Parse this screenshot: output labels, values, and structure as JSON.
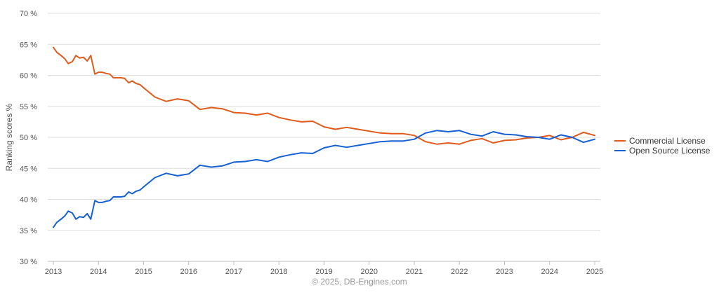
{
  "chart_data": {
    "type": "line",
    "ylabel": "Ranking scores %",
    "ylim": [
      30,
      70
    ],
    "y_ticks": [
      "30 %",
      "35 %",
      "40 %",
      "45 %",
      "50 %",
      "55 %",
      "60 %",
      "65 %",
      "70 %"
    ],
    "y_tick_values": [
      30,
      35,
      40,
      45,
      50,
      55,
      60,
      65,
      70
    ],
    "xlim": [
      2013,
      2025
    ],
    "x_ticks": [
      "2013",
      "2014",
      "2015",
      "2016",
      "2017",
      "2018",
      "2019",
      "2020",
      "2021",
      "2022",
      "2023",
      "2024",
      "2025"
    ],
    "x_tick_values": [
      2013,
      2014,
      2015,
      2016,
      2017,
      2018,
      2019,
      2020,
      2021,
      2022,
      2023,
      2024,
      2025
    ],
    "grid": true,
    "legend_position": "right",
    "series": [
      {
        "name": "Commercial License",
        "color": "#e05a1c",
        "x": [
          2013.0,
          2013.08,
          2013.17,
          2013.25,
          2013.33,
          2013.42,
          2013.5,
          2013.58,
          2013.67,
          2013.75,
          2013.83,
          2013.92,
          2014.0,
          2014.08,
          2014.17,
          2014.25,
          2014.33,
          2014.42,
          2014.5,
          2014.58,
          2014.67,
          2014.75,
          2014.83,
          2014.92,
          2015.0,
          2015.25,
          2015.5,
          2015.75,
          2016.0,
          2016.25,
          2016.5,
          2016.75,
          2017.0,
          2017.25,
          2017.5,
          2017.75,
          2018.0,
          2018.25,
          2018.5,
          2018.75,
          2019.0,
          2019.25,
          2019.5,
          2019.75,
          2020.0,
          2020.25,
          2020.5,
          2020.75,
          2021.0,
          2021.25,
          2021.5,
          2021.75,
          2022.0,
          2022.25,
          2022.5,
          2022.75,
          2023.0,
          2023.25,
          2023.5,
          2023.75,
          2024.0,
          2024.25,
          2024.5,
          2024.75,
          2025.0
        ],
        "values": [
          64.5,
          63.7,
          63.2,
          62.7,
          61.9,
          62.2,
          63.2,
          62.8,
          62.9,
          62.3,
          63.2,
          60.2,
          60.5,
          60.5,
          60.3,
          60.2,
          59.6,
          59.6,
          59.6,
          59.5,
          58.8,
          59.1,
          58.7,
          58.5,
          58.0,
          56.5,
          55.8,
          56.2,
          55.9,
          54.5,
          54.8,
          54.6,
          54.0,
          53.9,
          53.6,
          53.9,
          53.2,
          52.8,
          52.5,
          52.6,
          51.7,
          51.3,
          51.6,
          51.3,
          51.0,
          50.7,
          50.6,
          50.6,
          50.3,
          49.3,
          48.9,
          49.1,
          48.9,
          49.5,
          49.8,
          49.1,
          49.5,
          49.6,
          49.9,
          50.0,
          50.3,
          49.6,
          50.0,
          50.8,
          50.3
        ]
      },
      {
        "name": "Open Source License",
        "color": "#1560d4",
        "x": [
          2013.0,
          2013.08,
          2013.17,
          2013.25,
          2013.33,
          2013.42,
          2013.5,
          2013.58,
          2013.67,
          2013.75,
          2013.83,
          2013.92,
          2014.0,
          2014.08,
          2014.17,
          2014.25,
          2014.33,
          2014.42,
          2014.5,
          2014.58,
          2014.67,
          2014.75,
          2014.83,
          2014.92,
          2015.0,
          2015.25,
          2015.5,
          2015.75,
          2016.0,
          2016.25,
          2016.5,
          2016.75,
          2017.0,
          2017.25,
          2017.5,
          2017.75,
          2018.0,
          2018.25,
          2018.5,
          2018.75,
          2019.0,
          2019.25,
          2019.5,
          2019.75,
          2020.0,
          2020.25,
          2020.5,
          2020.75,
          2021.0,
          2021.25,
          2021.5,
          2021.75,
          2022.0,
          2022.25,
          2022.5,
          2022.75,
          2023.0,
          2023.25,
          2023.5,
          2023.75,
          2024.0,
          2024.25,
          2024.5,
          2024.75,
          2025.0
        ],
        "values": [
          35.5,
          36.3,
          36.8,
          37.3,
          38.1,
          37.8,
          36.8,
          37.2,
          37.1,
          37.7,
          36.8,
          39.8,
          39.5,
          39.5,
          39.7,
          39.8,
          40.4,
          40.4,
          40.4,
          40.5,
          41.2,
          40.9,
          41.3,
          41.5,
          42.0,
          43.5,
          44.2,
          43.8,
          44.1,
          45.5,
          45.2,
          45.4,
          46.0,
          46.1,
          46.4,
          46.1,
          46.8,
          47.2,
          47.5,
          47.4,
          48.3,
          48.7,
          48.4,
          48.7,
          49.0,
          49.3,
          49.4,
          49.4,
          49.7,
          50.7,
          51.1,
          50.9,
          51.1,
          50.5,
          50.2,
          50.9,
          50.5,
          50.4,
          50.1,
          50.0,
          49.7,
          50.4,
          50.0,
          49.2,
          49.7
        ]
      }
    ]
  },
  "credit": "© 2025, DB-Engines.com"
}
